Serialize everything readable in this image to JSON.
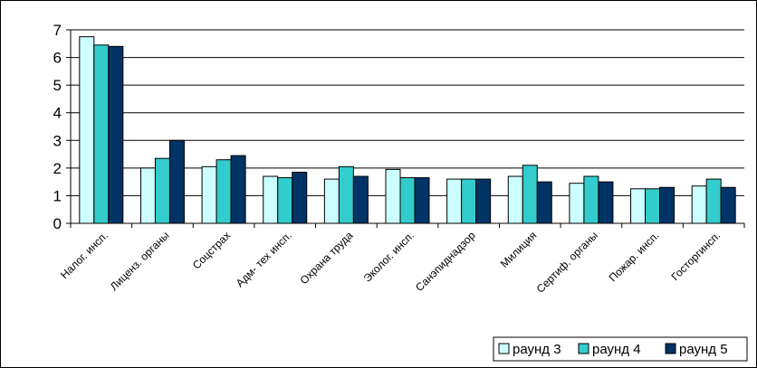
{
  "chart_data": {
    "type": "bar",
    "title": "",
    "xlabel": "",
    "ylabel": "",
    "ylim": [
      0,
      7
    ],
    "yticks": [
      0,
      1,
      2,
      3,
      4,
      5,
      6,
      7
    ],
    "grid": true,
    "legend_position": "bottom-right",
    "categories": [
      "Налог. инсп.",
      "Лиценз. органы",
      "Соцстрах",
      "Адм- тех инсп.",
      "Охрана труда",
      "Эколог. инсп.",
      "Санэпиднадзор",
      "Милиция",
      "Сертиф. органы",
      "Пожар. инсп.",
      "Госторгинсп."
    ],
    "series": [
      {
        "name": "раунд 3",
        "color": "#ccffff",
        "values": [
          6.75,
          2.0,
          2.05,
          1.7,
          1.6,
          1.95,
          1.6,
          1.7,
          1.45,
          1.25,
          1.35
        ]
      },
      {
        "name": "раунд 4",
        "color": "#33cccc",
        "values": [
          6.45,
          2.35,
          2.3,
          1.65,
          2.05,
          1.65,
          1.6,
          2.1,
          1.7,
          1.25,
          1.6
        ]
      },
      {
        "name": "раунд 5",
        "color": "#003366",
        "values": [
          6.4,
          3.0,
          2.45,
          1.85,
          1.7,
          1.65,
          1.6,
          1.5,
          1.5,
          1.3,
          1.3
        ]
      }
    ]
  }
}
